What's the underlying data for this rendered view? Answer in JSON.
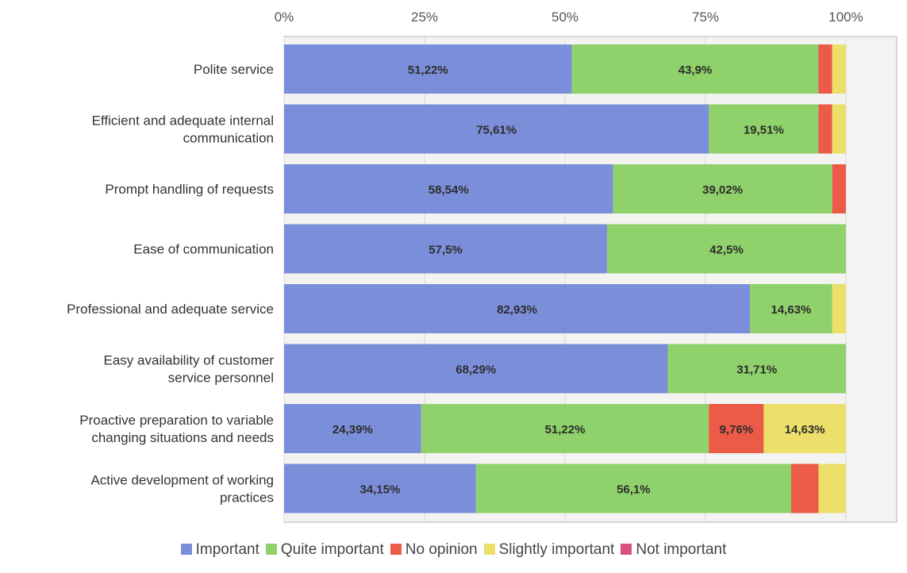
{
  "chart_data": {
    "type": "bar",
    "orientation": "horizontal",
    "stacked": true,
    "title": "",
    "xlabel": "",
    "ylabel": "",
    "xlim": [
      0,
      100
    ],
    "x_ticks": [
      "0%",
      "25%",
      "50%",
      "75%",
      "100%"
    ],
    "x_tick_values": [
      0,
      25,
      50,
      75,
      100
    ],
    "grid": true,
    "legend_position": "bottom",
    "categories": [
      [
        "Polite service"
      ],
      [
        "Efficient and adequate internal",
        "communication"
      ],
      [
        "Prompt handling of requests"
      ],
      [
        "Ease of communication"
      ],
      [
        "Professional and adequate service"
      ],
      [
        "Easy availability of customer",
        "service personnel"
      ],
      [
        "Proactive preparation to variable",
        "changing situations and needs"
      ],
      [
        "Active development of working",
        "practices"
      ]
    ],
    "series": [
      {
        "name": "Important",
        "color": "#7b8ed9",
        "values": [
          51.22,
          75.61,
          58.54,
          57.5,
          82.93,
          68.29,
          24.39,
          34.15
        ],
        "labels": [
          "51,22%",
          "75,61%",
          "58,54%",
          "57,5%",
          "82,93%",
          "68,29%",
          "24,39%",
          "34,15%"
        ]
      },
      {
        "name": "Quite important",
        "color": "#8fd16a",
        "values": [
          43.9,
          19.51,
          39.02,
          42.5,
          14.63,
          31.71,
          51.22,
          56.1
        ],
        "labels": [
          "43,9%",
          "19,51%",
          "39,02%",
          "42,5%",
          "14,63%",
          "31,71%",
          "51,22%",
          "56,1%"
        ]
      },
      {
        "name": "No opinion",
        "color": "#ec5a48",
        "values": [
          2.44,
          2.44,
          2.44,
          0,
          0,
          0,
          9.76,
          4.88
        ],
        "labels": [
          "",
          "",
          "",
          "",
          "",
          "",
          "9,76%",
          ""
        ]
      },
      {
        "name": "Slightly important",
        "color": "#ecdf6a",
        "values": [
          2.44,
          2.44,
          0,
          0,
          2.44,
          0,
          14.63,
          4.88
        ],
        "labels": [
          "",
          "",
          "",
          "",
          "",
          "",
          "14,63%",
          ""
        ]
      },
      {
        "name": "Not important",
        "color": "#d9527e",
        "values": [
          0,
          0,
          0,
          0,
          0,
          0,
          0,
          0
        ],
        "labels": [
          "",
          "",
          "",
          "",
          "",
          "",
          "",
          ""
        ]
      }
    ]
  }
}
